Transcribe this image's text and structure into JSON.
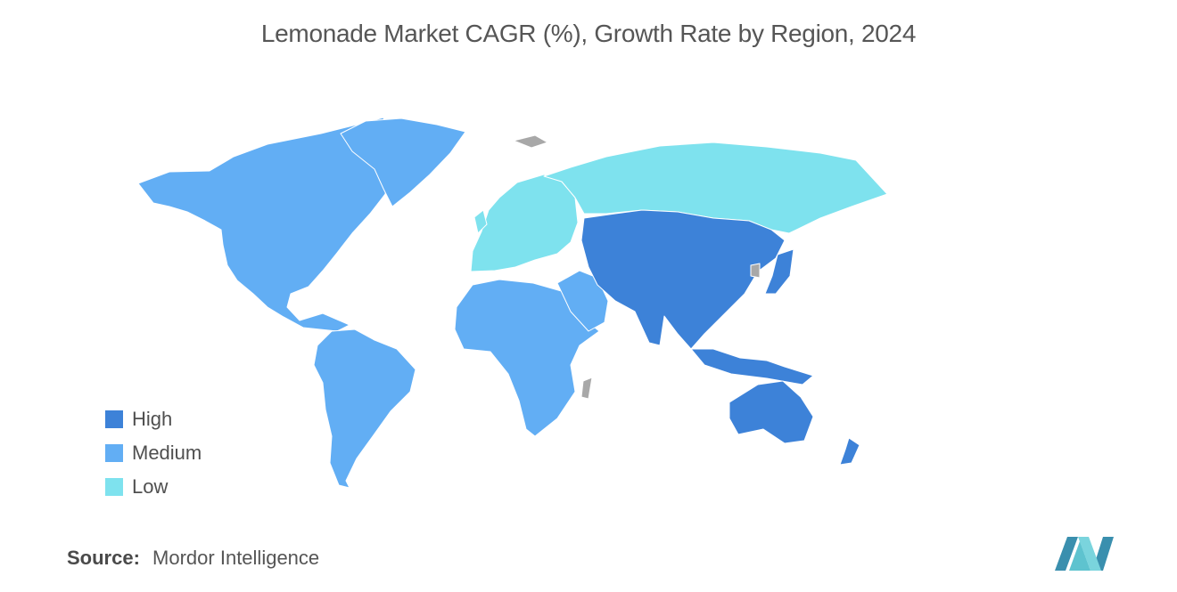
{
  "title": "Lemonade Market CAGR (%), Growth Rate by Region, 2024",
  "legend": [
    {
      "key": "high",
      "label": "High",
      "color": "#3d82d8"
    },
    {
      "key": "medium",
      "label": "Medium",
      "color": "#62aef4"
    },
    {
      "key": "low",
      "label": "Low",
      "color": "#7ee2ee"
    }
  ],
  "no_data_color": "#a8a8a8",
  "regions": [
    {
      "name": "North America",
      "level": "medium"
    },
    {
      "name": "South America",
      "level": "medium"
    },
    {
      "name": "Europe",
      "level": "low"
    },
    {
      "name": "Russia",
      "level": "low"
    },
    {
      "name": "Middle East and Africa",
      "level": "medium"
    },
    {
      "name": "Asia-Pacific",
      "level": "high"
    }
  ],
  "source": {
    "label": "Source:",
    "text": "Mordor Intelligence"
  },
  "logo": {
    "icon": "mordor-intelligence-logo",
    "color": "#5ab4c5"
  }
}
